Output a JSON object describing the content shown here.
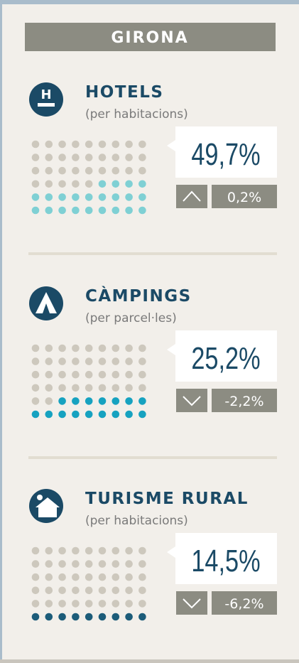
{
  "header": {
    "title": "GIRONA"
  },
  "sections": [
    {
      "title": "HOTELS",
      "subtitle": "(per habitacions)",
      "value": "49,7%",
      "trend": "up",
      "change": "0,2%"
    },
    {
      "title": "CÀMPINGS",
      "subtitle": "(per parcel·les)",
      "value": "25,2%",
      "trend": "down",
      "change": "-2,2%"
    },
    {
      "title": "TURISME RURAL",
      "subtitle": "(per habitacions)",
      "value": "14,5%",
      "trend": "down",
      "change": "-6,2%"
    }
  ]
}
